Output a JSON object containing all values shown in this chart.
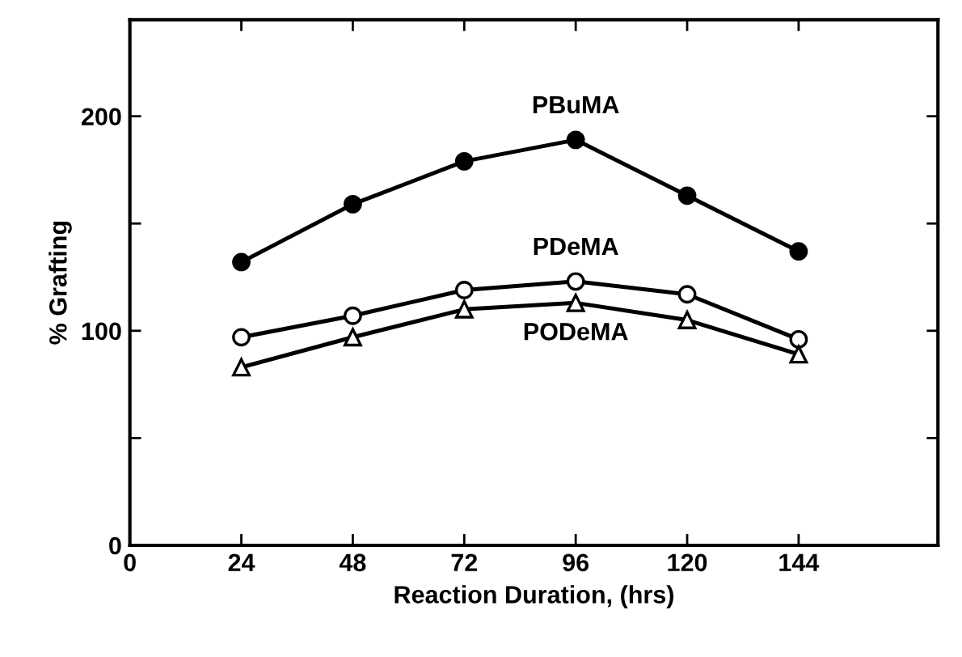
{
  "chart_data": {
    "type": "line",
    "xlabel": "Reaction Duration, (hrs)",
    "ylabel": "% Grafting",
    "x": [
      24,
      48,
      72,
      96,
      120,
      144
    ],
    "series": [
      {
        "name": "PBuMA",
        "color": "#000000",
        "marker": "circle",
        "values": [
          132,
          159,
          179,
          189,
          163,
          137
        ]
      },
      {
        "name": "PDeMA",
        "color": "#000000",
        "marker": "circle",
        "values": [
          97,
          107,
          119,
          123,
          117,
          96
        ]
      },
      {
        "name": "PODeMA",
        "color": "#000000",
        "marker": "triangle",
        "values": [
          83,
          97,
          110,
          113,
          105,
          89
        ]
      }
    ],
    "xlim": [
      0,
      174
    ],
    "xticks": [
      0,
      24,
      48,
      72,
      96,
      120,
      144
    ],
    "ylim": [
      0,
      245
    ],
    "yticks": [
      0,
      {
        "value": 50,
        "label": null
      },
      100,
      {
        "value": 150,
        "label": null
      },
      200
    ],
    "grid": false,
    "legend": false,
    "line_style": "solid"
  }
}
